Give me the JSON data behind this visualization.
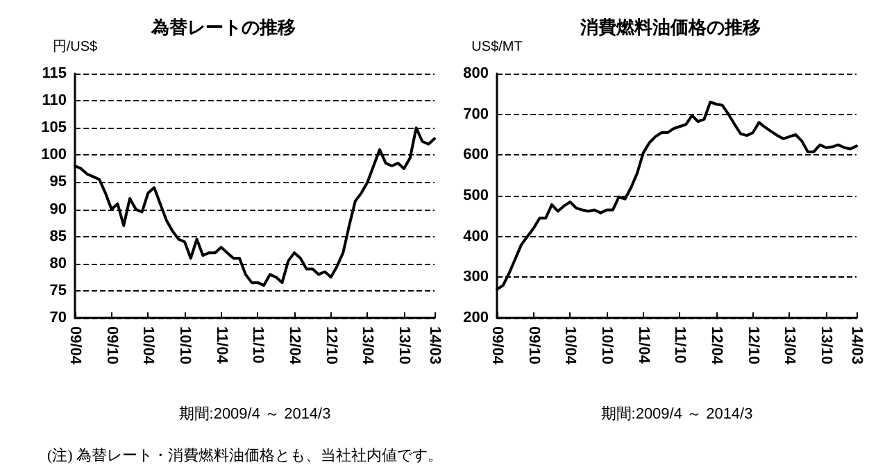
{
  "chart_data": [
    {
      "type": "line",
      "title": "為替レートの推移",
      "ylabel": "円/US$",
      "xlabel": "期間:2009/4 ～ 2014/3",
      "annotations": [
        "(注) 為替レート・消費燃料油価格とも、当社社内値です。"
      ],
      "categories": [
        "09/04",
        null,
        null,
        null,
        null,
        null,
        "09/10",
        null,
        null,
        null,
        null,
        null,
        "10/04",
        null,
        null,
        null,
        null,
        null,
        "10/10",
        null,
        null,
        null,
        null,
        null,
        "11/04",
        null,
        null,
        null,
        null,
        null,
        "11/10",
        null,
        null,
        null,
        null,
        null,
        "12/04",
        null,
        null,
        null,
        null,
        null,
        "12/10",
        null,
        null,
        null,
        null,
        null,
        "13/04",
        null,
        null,
        null,
        null,
        null,
        "13/10",
        null,
        null,
        null,
        null,
        "14/03"
      ],
      "series": [
        {
          "color": "#000000",
          "values": [
            98,
            97.5,
            96.5,
            96,
            95.5,
            93,
            90,
            91,
            87,
            92,
            90,
            89.5,
            93,
            94,
            91,
            88,
            86,
            84.5,
            84,
            81,
            84.5,
            81.5,
            82,
            82,
            83,
            82,
            81,
            81,
            78,
            76.5,
            76.5,
            76,
            78,
            77.5,
            76.5,
            80.5,
            82,
            81,
            79,
            79,
            78,
            78.5,
            77.5,
            79.5,
            82,
            87,
            91.5,
            93,
            95,
            98,
            101,
            98.5,
            98,
            98.5,
            97.5,
            99.5,
            105,
            102.5,
            102,
            103
          ]
        }
      ],
      "ylim": [
        70,
        115
      ],
      "yticks": [
        70,
        75,
        80,
        85,
        90,
        95,
        100,
        105,
        110,
        115
      ],
      "grid": "y",
      "marker": "none",
      "line_style": "solid"
    },
    {
      "type": "line",
      "title": "消費燃料油価格の推移",
      "ylabel": "US$/MT",
      "xlabel": "期間:2009/4 ～ 2014/3",
      "categories": [
        "09/04",
        null,
        null,
        null,
        null,
        null,
        "09/10",
        null,
        null,
        null,
        null,
        null,
        "10/04",
        null,
        null,
        null,
        null,
        null,
        "10/10",
        null,
        null,
        null,
        null,
        null,
        "11/04",
        null,
        null,
        null,
        null,
        null,
        "11/10",
        null,
        null,
        null,
        null,
        null,
        "12/04",
        null,
        null,
        null,
        null,
        null,
        "12/10",
        null,
        null,
        null,
        null,
        null,
        "13/04",
        null,
        null,
        null,
        null,
        null,
        "13/10",
        null,
        null,
        null,
        null,
        "14/03"
      ],
      "series": [
        {
          "color": "#000000",
          "values": [
            270,
            280,
            310,
            345,
            380,
            400,
            420,
            445,
            445,
            478,
            462,
            475,
            485,
            470,
            465,
            462,
            465,
            458,
            465,
            465,
            497,
            492,
            520,
            555,
            605,
            630,
            645,
            655,
            655,
            665,
            670,
            675,
            697,
            682,
            688,
            730,
            725,
            722,
            700,
            675,
            652,
            648,
            655,
            680,
            668,
            658,
            648,
            640,
            645,
            650,
            635,
            608,
            608,
            625,
            618,
            620,
            625,
            618,
            615,
            622
          ]
        }
      ],
      "ylim": [
        200,
        800
      ],
      "yticks": [
        200,
        300,
        400,
        500,
        600,
        700,
        800
      ],
      "grid": "y",
      "marker": "none",
      "line_style": "solid"
    }
  ]
}
